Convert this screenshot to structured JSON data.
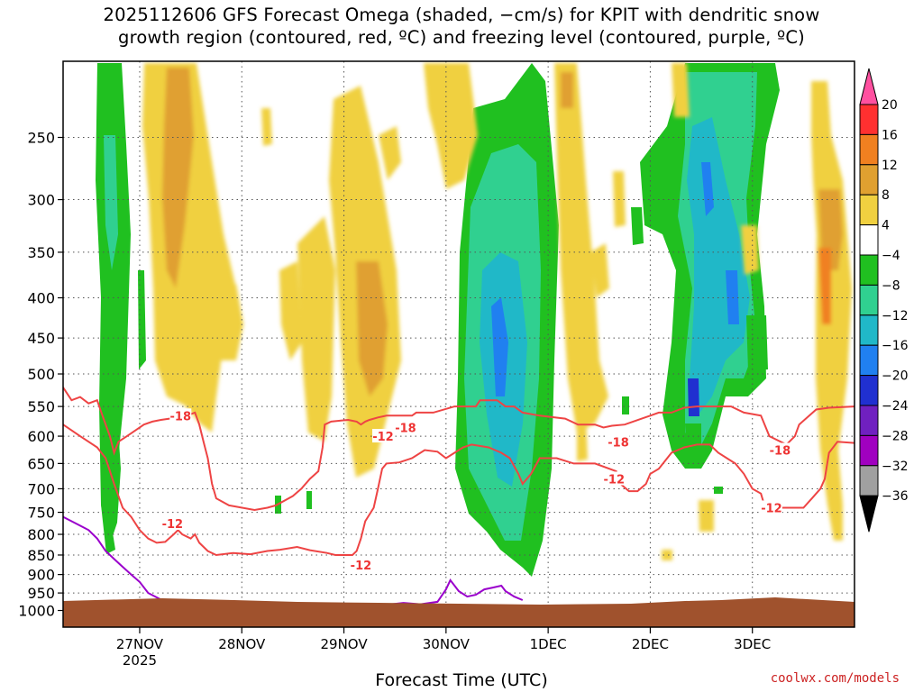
{
  "title_line1": "2025112606 GFS Forecast Omega (shaded, −cm/s) for KPIT with dendritic snow",
  "title_line2": "growth region (contoured, red, ºC) and freezing level (contoured, purple, ºC)",
  "credit": "coolwx.com/models",
  "chart_data": {
    "type": "heatmap",
    "xlabel": "Forecast Time (UTC)",
    "ylabel": "",
    "y_scale": "log-pressure, inverted (hPa)",
    "y_ticks": [
      250,
      300,
      350,
      400,
      450,
      500,
      550,
      600,
      650,
      700,
      750,
      800,
      850,
      900,
      950,
      1000
    ],
    "ylim": [
      1000,
      200
    ],
    "xlim": [
      "2025-11-26 06Z",
      "2025-12-03 18Z"
    ],
    "x_ticks": [
      {
        "label": "27NOV",
        "sub": "2025",
        "at": "2025-11-27 00Z"
      },
      {
        "label": "28NOV",
        "sub": "",
        "at": "2025-11-28 00Z"
      },
      {
        "label": "29NOV",
        "sub": "",
        "at": "2025-11-29 00Z"
      },
      {
        "label": "30NOV",
        "sub": "",
        "at": "2025-11-30 00Z"
      },
      {
        "label": "1DEC",
        "sub": "",
        "at": "2025-12-01 00Z"
      },
      {
        "label": "2DEC",
        "sub": "",
        "at": "2025-12-02 00Z"
      },
      {
        "label": "3DEC",
        "sub": "",
        "at": "2025-12-03 00Z"
      }
    ],
    "grid": true,
    "colorbar": {
      "labels": [
        "20",
        "16",
        "12",
        "8",
        "4",
        "−4",
        "−8",
        "−12",
        "−16",
        "−20",
        "−24",
        "−28",
        "−32",
        "−36"
      ],
      "colors": [
        "#ff50a0",
        "#ff3030",
        "#f08020",
        "#e0a030",
        "#f0d040",
        "#ffffff",
        "#20c020",
        "#30d090",
        "#20b8c8",
        "#2080f0",
        "#2030d0",
        "#7020c0",
        "#a000c0",
        "#a0a0a0",
        "#000000"
      ]
    },
    "contour_labels": [
      {
        "text": "-18",
        "hour": 27.6,
        "p": 565
      },
      {
        "text": "-18",
        "hour": 80.5,
        "p": 585
      },
      {
        "text": "-18",
        "hour": 130.5,
        "p": 610
      },
      {
        "text": "-18",
        "hour": 168.5,
        "p": 625
      },
      {
        "text": "-12",
        "hour": 25.7,
        "p": 775
      },
      {
        "text": "-12",
        "hour": 70.0,
        "p": 875
      },
      {
        "text": "-12",
        "hour": 75.2,
        "p": 600
      },
      {
        "text": "-12",
        "hour": 129.5,
        "p": 680
      },
      {
        "text": "-12",
        "hour": 166.5,
        "p": 740
      }
    ],
    "dgz_upper_-18C": [
      [
        0,
        520
      ],
      [
        2,
        540
      ],
      [
        4,
        535
      ],
      [
        6,
        545
      ],
      [
        8,
        540
      ],
      [
        9,
        560
      ],
      [
        11,
        600
      ],
      [
        12,
        630
      ],
      [
        13,
        610
      ],
      [
        15,
        600
      ],
      [
        17,
        590
      ],
      [
        19,
        580
      ],
      [
        21,
        575
      ],
      [
        23,
        572
      ],
      [
        25,
        570
      ],
      [
        27,
        565
      ],
      [
        29,
        565
      ],
      [
        31,
        560
      ],
      [
        32,
        580
      ],
      [
        33,
        610
      ],
      [
        34,
        640
      ],
      [
        35,
        690
      ],
      [
        36,
        720
      ],
      [
        39,
        735
      ],
      [
        45,
        745
      ],
      [
        48,
        740
      ],
      [
        50,
        735
      ],
      [
        54,
        715
      ],
      [
        56,
        700
      ],
      [
        58,
        680
      ],
      [
        60,
        665
      ],
      [
        61,
        620
      ],
      [
        61.5,
        580
      ],
      [
        63,
        575
      ],
      [
        67,
        572
      ],
      [
        69,
        575
      ],
      [
        70,
        580
      ],
      [
        71,
        575
      ],
      [
        72,
        572
      ],
      [
        74,
        568
      ],
      [
        76,
        565
      ],
      [
        78,
        565
      ],
      [
        82,
        565
      ],
      [
        83,
        560
      ],
      [
        87,
        560
      ],
      [
        92,
        550
      ],
      [
        97,
        550
      ],
      [
        98,
        540
      ],
      [
        100,
        540
      ],
      [
        102,
        540
      ],
      [
        104,
        550
      ],
      [
        106,
        550
      ],
      [
        108,
        560
      ],
      [
        112,
        565
      ],
      [
        118,
        570
      ],
      [
        121,
        580
      ],
      [
        125,
        580
      ],
      [
        127,
        585
      ],
      [
        129,
        582
      ],
      [
        132,
        580
      ],
      [
        136,
        570
      ],
      [
        138,
        565
      ],
      [
        140,
        560
      ],
      [
        143,
        560
      ],
      [
        146,
        552
      ],
      [
        149,
        550
      ],
      [
        153,
        550
      ],
      [
        157,
        550
      ],
      [
        160,
        560
      ],
      [
        164,
        565
      ],
      [
        166,
        600
      ],
      [
        170,
        615
      ],
      [
        172,
        600
      ],
      [
        173,
        580
      ],
      [
        177,
        555
      ],
      [
        180,
        552
      ],
      [
        186,
        550
      ]
    ],
    "dgz_lower_-12C": [
      [
        0,
        580
      ],
      [
        4,
        600
      ],
      [
        8,
        620
      ],
      [
        10,
        640
      ],
      [
        12,
        690
      ],
      [
        14,
        740
      ],
      [
        16,
        760
      ],
      [
        18,
        790
      ],
      [
        20,
        810
      ],
      [
        22,
        820
      ],
      [
        24,
        818
      ],
      [
        26,
        800
      ],
      [
        27,
        790
      ],
      [
        28,
        800
      ],
      [
        30,
        810
      ],
      [
        31,
        800
      ],
      [
        32,
        820
      ],
      [
        34,
        840
      ],
      [
        36,
        850
      ],
      [
        40,
        845
      ],
      [
        44,
        848
      ],
      [
        48,
        840
      ],
      [
        51,
        837
      ],
      [
        55,
        830
      ],
      [
        58,
        838
      ],
      [
        62,
        845
      ],
      [
        64,
        850
      ],
      [
        66,
        850
      ],
      [
        68,
        850
      ],
      [
        69,
        840
      ],
      [
        70,
        810
      ],
      [
        71,
        770
      ],
      [
        73,
        740
      ],
      [
        74,
        700
      ],
      [
        75,
        660
      ],
      [
        76,
        650
      ],
      [
        79,
        648
      ],
      [
        82,
        640
      ],
      [
        85,
        625
      ],
      [
        88,
        628
      ],
      [
        90,
        640
      ],
      [
        92,
        630
      ],
      [
        94,
        620
      ],
      [
        96,
        615
      ],
      [
        100,
        620
      ],
      [
        103,
        630
      ],
      [
        105,
        640
      ],
      [
        107,
        670
      ],
      [
        108,
        690
      ],
      [
        110,
        670
      ],
      [
        112,
        640
      ],
      [
        116,
        640
      ],
      [
        120,
        650
      ],
      [
        125,
        650
      ],
      [
        130,
        665
      ],
      [
        131,
        690
      ],
      [
        133,
        705
      ],
      [
        135,
        705
      ],
      [
        137,
        690
      ],
      [
        138,
        670
      ],
      [
        140,
        660
      ],
      [
        143,
        630
      ],
      [
        146,
        620
      ],
      [
        149,
        615
      ],
      [
        152,
        615
      ],
      [
        154,
        630
      ],
      [
        156,
        640
      ],
      [
        158,
        650
      ],
      [
        160,
        670
      ],
      [
        162,
        700
      ],
      [
        164,
        710
      ],
      [
        165,
        740
      ],
      [
        167,
        740
      ],
      [
        170,
        740
      ],
      [
        174,
        740
      ],
      [
        176,
        720
      ],
      [
        178,
        700
      ],
      [
        179,
        680
      ],
      [
        180,
        630
      ],
      [
        182,
        610
      ],
      [
        186,
        612
      ]
    ],
    "freezing_level_0C": [
      [
        0,
        760
      ],
      [
        4,
        780
      ],
      [
        6,
        790
      ],
      [
        8,
        810
      ],
      [
        10,
        840
      ],
      [
        12,
        860
      ],
      [
        14,
        880
      ],
      [
        16,
        900
      ],
      [
        18,
        920
      ],
      [
        20,
        950
      ],
      [
        24,
        975
      ],
      [
        28,
        985
      ],
      [
        32,
        985
      ],
      [
        40,
        985
      ],
      [
        48,
        988
      ],
      [
        56,
        990
      ],
      [
        62,
        990
      ],
      [
        70,
        990
      ],
      [
        75,
        985
      ],
      [
        80,
        978
      ],
      [
        84,
        982
      ],
      [
        88,
        975
      ],
      [
        90,
        940
      ],
      [
        91,
        915
      ],
      [
        92,
        930
      ],
      [
        93,
        945
      ],
      [
        95,
        960
      ],
      [
        97,
        955
      ],
      [
        99,
        940
      ],
      [
        101,
        935
      ],
      [
        103,
        930
      ],
      [
        104,
        945
      ],
      [
        106,
        960
      ],
      [
        108,
        970
      ]
    ]
  }
}
